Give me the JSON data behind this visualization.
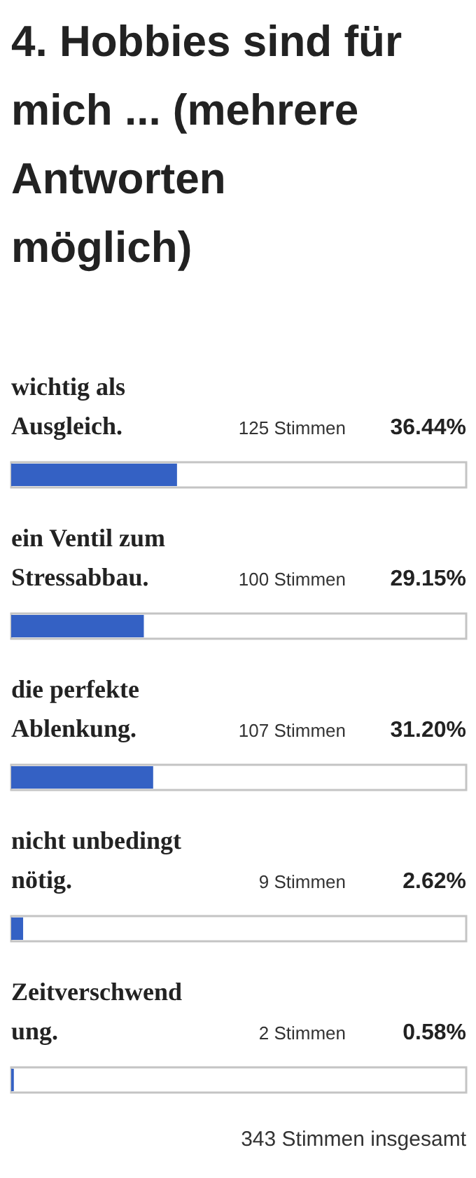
{
  "chart_data": {
    "type": "bar",
    "orientation": "horizontal",
    "title": "4. Hobbies sind für mich ... (mehrere Antworten möglich)",
    "categories": [
      "wichtig als Ausgleich.",
      "ein Ventil zum Stressabbau.",
      "die perfekte Ablenkung.",
      "nicht unbedingt nötig.",
      "Zeitverschwendung."
    ],
    "values": [
      36.44,
      29.15,
      31.2,
      2.62,
      0.58
    ],
    "value_labels": [
      "36.44%",
      "29.15%",
      "31.20%",
      "2.62%",
      "0.58%"
    ],
    "color": "#3461c4",
    "xlim": [
      0,
      100
    ],
    "annotations": [
      "125 Stimmen",
      "100 Stimmen",
      "107 Stimmen",
      "9 Stimmen",
      "2 Stimmen",
      "343 Stimmen insgesamt"
    ]
  }
}
